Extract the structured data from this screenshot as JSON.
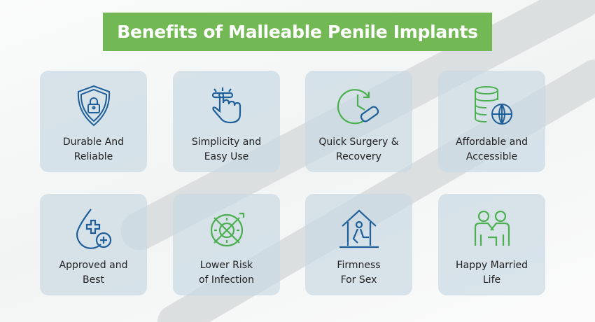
{
  "title": "Benefits of Malleable Penile Implants",
  "colors": {
    "title_bg": "#72b854",
    "icon_blue": "#1f5f99",
    "icon_green": "#4caf50",
    "card_bg": "#cbd9e3"
  },
  "cards": [
    {
      "label": "Durable And\nReliable",
      "icon": "shield-lock-icon"
    },
    {
      "label": "Simplicity and\nEasy Use",
      "icon": "hand-press-button-icon"
    },
    {
      "label": "Quick Surgery &\nRecovery",
      "icon": "clock-bandage-icon"
    },
    {
      "label": "Affordable and\nAccessible",
      "icon": "coins-globe-icon"
    },
    {
      "label": "Approved and\nBest",
      "icon": "drop-plus-icon"
    },
    {
      "label": "Lower Risk\nof Infection",
      "icon": "no-virus-icon"
    },
    {
      "label": "Firmness\nFor Sex",
      "icon": "house-person-icon"
    },
    {
      "label": "Happy Married\nLife",
      "icon": "couple-icon"
    }
  ]
}
